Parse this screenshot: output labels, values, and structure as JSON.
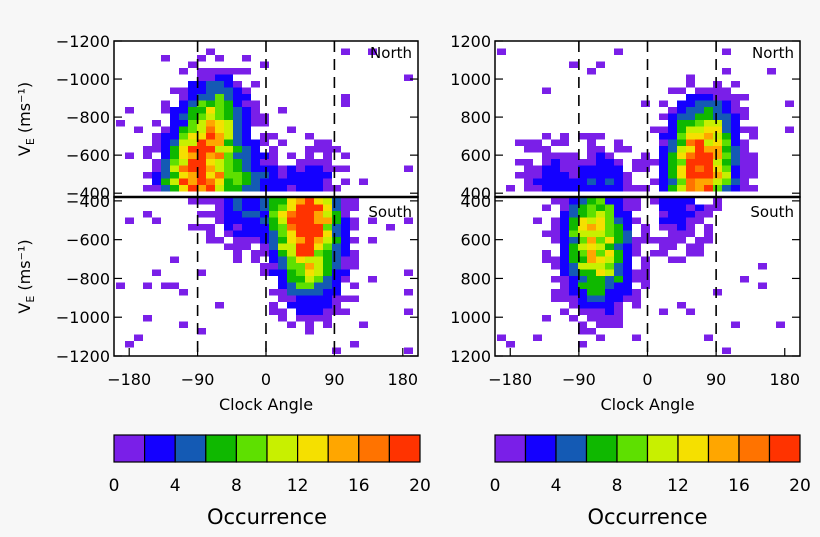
{
  "chart_data": [
    {
      "type": "heatmap",
      "panel": "left",
      "xlabel": "Clock Angle",
      "xlim": [
        -200,
        200
      ],
      "x_ticks": [
        "−180",
        "−90",
        "0",
        "90",
        "180"
      ],
      "x_tick_values": [
        -180,
        -90,
        0,
        90,
        180
      ],
      "dashed_lines_x": [
        -90,
        0,
        90
      ],
      "top": {
        "region": "North",
        "ylabel_main": "V",
        "ylabel_sub": "E",
        "ylabel_unit": " (ms⁻¹)",
        "ylim": [
          -1200,
          -380
        ],
        "y_ticks": [
          "−1200",
          "−1000",
          "−800",
          "−600",
          "−400"
        ],
        "y_tick_values": [
          -1200,
          -1000,
          -800,
          -600,
          -400
        ],
        "clusters": [
          {
            "x": -90,
            "y": -480,
            "peak": 20
          },
          {
            "x": -75,
            "y": -700,
            "peak": 10
          },
          {
            "x": -65,
            "y": -850,
            "peak": 5
          },
          {
            "x": -20,
            "y": -430,
            "peak": 5
          },
          {
            "x": 60,
            "y": -450,
            "peak": 3
          }
        ]
      },
      "bottom": {
        "region": "South",
        "ylabel_main": "V",
        "ylabel_sub": "E",
        "ylabel_unit": " (ms⁻¹)",
        "ylim": [
          -380,
          -1200
        ],
        "y_ticks": [
          "−400",
          "−600",
          "−800",
          "−1000",
          "−1200"
        ],
        "y_tick_values": [
          -400,
          -600,
          -800,
          -1000,
          -1200
        ],
        "clusters": [
          {
            "x": 50,
            "y": -460,
            "peak": 18
          },
          {
            "x": 55,
            "y": -620,
            "peak": 10
          },
          {
            "x": 60,
            "y": -800,
            "peak": 5
          },
          {
            "x": -30,
            "y": -430,
            "peak": 4
          }
        ]
      }
    },
    {
      "type": "heatmap",
      "panel": "right",
      "xlabel": "Clock Angle",
      "xlim": [
        -200,
        200
      ],
      "x_ticks": [
        "−180",
        "−90",
        "0",
        "90",
        "180"
      ],
      "x_tick_values": [
        -180,
        -90,
        0,
        90,
        180
      ],
      "dashed_lines_x": [
        -90,
        0,
        90
      ],
      "top": {
        "region": "North",
        "ylim": [
          1200,
          380
        ],
        "y_ticks": [
          "1200",
          "1000",
          "800",
          "600",
          "400"
        ],
        "y_tick_values": [
          1200,
          1000,
          800,
          600,
          400
        ],
        "clusters": [
          {
            "x": 70,
            "y": 480,
            "peak": 20
          },
          {
            "x": 75,
            "y": 700,
            "peak": 10
          },
          {
            "x": -60,
            "y": 440,
            "peak": 4
          },
          {
            "x": -130,
            "y": 430,
            "peak": 3
          }
        ]
      },
      "bottom": {
        "region": "South",
        "ylim": [
          380,
          1200
        ],
        "y_ticks": [
          "400",
          "600",
          "800",
          "1000",
          "1200"
        ],
        "y_tick_values": [
          400,
          600,
          800,
          1000,
          1200
        ],
        "clusters": [
          {
            "x": -70,
            "y": 520,
            "peak": 10
          },
          {
            "x": -65,
            "y": 700,
            "peak": 7
          },
          {
            "x": -60,
            "y": 850,
            "peak": 3
          },
          {
            "x": 40,
            "y": 440,
            "peak": 3
          }
        ]
      }
    }
  ],
  "colorbar": {
    "label": "Occurrence",
    "range": [
      0,
      20
    ],
    "tick_labels": [
      "0",
      "4",
      "8",
      "12",
      "16",
      "20"
    ],
    "colors": [
      "#7a1fe8",
      "#1400ff",
      "#145ab4",
      "#0fb800",
      "#5ee000",
      "#c8f000",
      "#f5e000",
      "#ffa600",
      "#ff7300",
      "#ff3300"
    ]
  }
}
